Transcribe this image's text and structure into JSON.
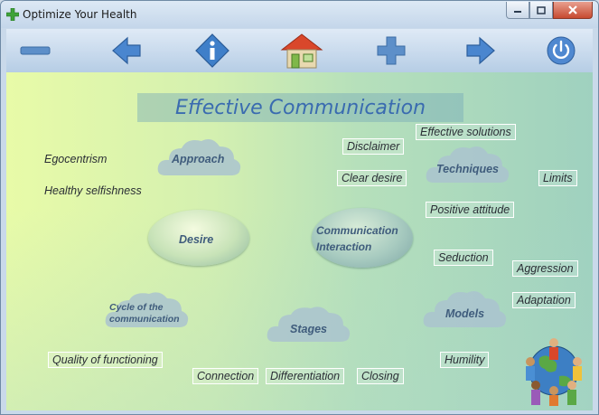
{
  "window": {
    "title": "Optimize Your Health"
  },
  "toolbar": {
    "buttons": [
      "minus-icon",
      "back-arrow-icon",
      "info-icon",
      "home-icon",
      "plus-icon",
      "forward-arrow-icon",
      "power-icon"
    ]
  },
  "content": {
    "heading": "Effective Communication",
    "labels": {
      "egocentrism": "Egocentrism",
      "healthy_selfishness": "Healthy selfishness",
      "quality_of_functioning": "Quality of functioning",
      "disclaimer": "Disclaimer",
      "clear_desire": "Clear desire",
      "effective_solutions": "Effective solutions",
      "limits": "Limits",
      "positive_attitude": "Positive attitude",
      "seduction": "Seduction",
      "aggression": "Aggression",
      "adaptation": "Adaptation",
      "humility": "Humility",
      "connection": "Connection",
      "differentiation": "Differentiation",
      "closing": "Closing"
    },
    "clouds": {
      "approach": "Approach",
      "techniques": "Techniques",
      "cycle_line1": "Cycle of the",
      "cycle_line2": "communication",
      "stages": "Stages",
      "models": "Models"
    },
    "ellipses": {
      "desire": "Desire",
      "comm_line1": "Communication",
      "comm_line2": "Interaction"
    }
  },
  "colors": {
    "heading": "#3a6bb0",
    "arrow": "#3f7fc9",
    "home_roof": "#d9472b"
  }
}
